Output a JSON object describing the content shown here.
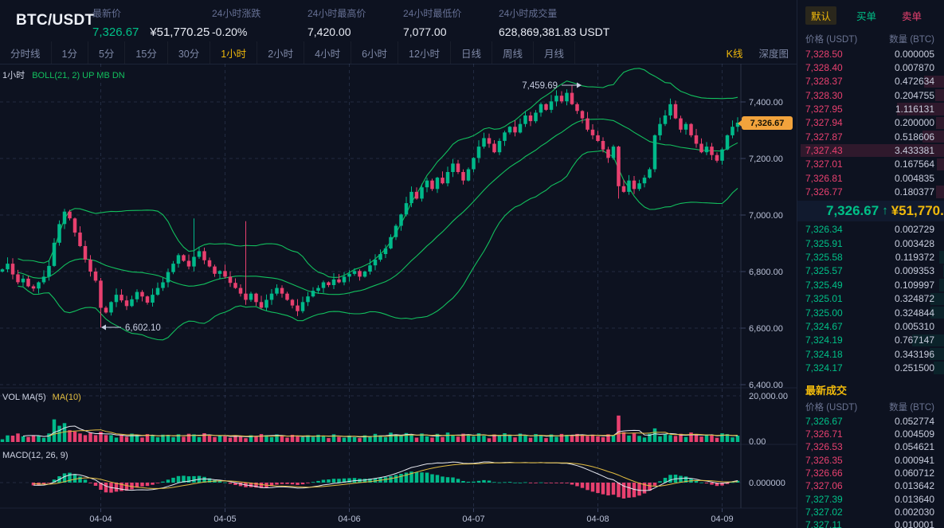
{
  "header": {
    "symbol": "BTC/USDT",
    "stats": [
      {
        "label": "最新价",
        "value": "7,326.67",
        "value2": "¥51,770.25"
      },
      {
        "label": "24小时涨跌",
        "value": "-0.20%"
      },
      {
        "label": "24小时最高价",
        "value": "7,420.00"
      },
      {
        "label": "24小时最低价",
        "value": "7,077.00"
      },
      {
        "label": "24小时成交量",
        "value": "628,869,381.83 USDT"
      }
    ]
  },
  "interval_tabs": [
    {
      "key": "time-line",
      "label": "分时线",
      "active": false
    },
    {
      "key": "1m",
      "label": "1分",
      "active": false
    },
    {
      "key": "5m",
      "label": "5分",
      "active": false
    },
    {
      "key": "15m",
      "label": "15分",
      "active": false
    },
    {
      "key": "30m",
      "label": "30分",
      "active": false
    },
    {
      "key": "1h",
      "label": "1小时",
      "active": true
    },
    {
      "key": "2h",
      "label": "2小时",
      "active": false
    },
    {
      "key": "4h",
      "label": "4小时",
      "active": false
    },
    {
      "key": "6h",
      "label": "6小时",
      "active": false
    },
    {
      "key": "12h",
      "label": "12小时",
      "active": false
    },
    {
      "key": "1d",
      "label": "日线",
      "active": false
    },
    {
      "key": "1w",
      "label": "周线",
      "active": false
    },
    {
      "key": "1mo",
      "label": "月线",
      "active": false
    }
  ],
  "view_tabs": [
    {
      "key": "kline",
      "label": "K线",
      "active": true
    },
    {
      "key": "depth",
      "label": "深度图",
      "active": false
    }
  ],
  "legends": {
    "pane": "1小时",
    "boll": "BOLL(21, 2) UP MB DN",
    "vol": "VOL MA(5)",
    "vol_ma10": "MA(10)",
    "macd": "MACD(12, 26, 9)"
  },
  "colors": {
    "up": "#00b98a",
    "down": "#e8406f",
    "boll": "#12c05e",
    "accent": "#f0b90b",
    "tag_bg": "#f2a33c",
    "ma5": "#e6e8f0",
    "ma10": "#e3bd40",
    "grid": "rgba(110,130,180,0.22)",
    "axis_text": "#b9c0d6"
  },
  "chart_data": {
    "type": "candlestick",
    "title": "BTC/USDT 1小时 K线",
    "interval": "1h",
    "indicators": {
      "boll": {
        "window": 21,
        "k": 2
      },
      "vol_ma": [
        5,
        10
      ],
      "macd": {
        "fast": 12,
        "slow": 26,
        "signal": 9
      }
    },
    "x_dates": [
      "04-04",
      "04-05",
      "04-06",
      "04-07",
      "04-08",
      "04-09"
    ],
    "date_tick_indices": [
      19,
      43,
      67,
      91,
      115,
      139
    ],
    "first_open": 6800,
    "closes": [
      6808,
      6828,
      6790,
      6762,
      6775,
      6748,
      6740,
      6762,
      6782,
      6820,
      6902,
      6968,
      7012,
      6988,
      6938,
      6890,
      6842,
      6800,
      6768,
      6672,
      6655,
      6692,
      6718,
      6698,
      6678,
      6702,
      6728,
      6712,
      6690,
      6718,
      6742,
      6762,
      6798,
      6828,
      6858,
      6838,
      6818,
      6852,
      6872,
      6840,
      6818,
      6792,
      6802,
      6782,
      6760,
      6742,
      6722,
      6700,
      6722,
      6692,
      6672,
      6700,
      6722,
      6742,
      6722,
      6700,
      6680,
      6660,
      6692,
      6712,
      6732,
      6742,
      6762,
      6752,
      6772,
      6762,
      6782,
      6792,
      6802,
      6782,
      6800,
      6822,
      6842,
      6862,
      6882,
      6922,
      6962,
      7002,
      7042,
      7082,
      7058,
      7098,
      7122,
      7092,
      7132,
      7112,
      7152,
      7182,
      7152,
      7122,
      7162,
      7202,
      7242,
      7272,
      7252,
      7222,
      7262,
      7292,
      7312,
      7292,
      7322,
      7352,
      7332,
      7362,
      7392,
      7372,
      7402,
      7422,
      7402,
      7432,
      7392,
      7368,
      7342,
      7302,
      7282,
      7262,
      7232,
      7202,
      7242,
      7102,
      7082,
      7122,
      7092,
      7112,
      7132,
      7162,
      7282,
      7322,
      7352,
      7392,
      7342,
      7302,
      7322,
      7282,
      7252,
      7222,
      7242,
      7212,
      7192,
      7232,
      7282,
      7312,
      7326.67
    ],
    "wick_overrides": {
      "19": {
        "low": 6602.1
      },
      "37": {
        "high": 6988
      },
      "47": {
        "high": 6978
      },
      "110": {
        "high": 7459.69
      },
      "119": {
        "low": 7058
      },
      "129": {
        "high": 7412
      }
    },
    "annotations": {
      "high": "7,459.69",
      "low": "6,602.10"
    },
    "y_axis": {
      "labels": [
        "7,400.00",
        "7,200.00",
        "7,000.00",
        "6,800.00",
        "6,600.00",
        "6,400.00"
      ],
      "prices": [
        7400,
        7200,
        7000,
        6800,
        6600,
        6400
      ]
    },
    "vol_axis": {
      "labels": [
        "20,000.00",
        "0.00"
      ],
      "max": 20000
    },
    "macd_axis": {
      "labels": [
        "0.000000"
      ]
    },
    "last_price_tag": "7,326.67"
  },
  "orderbook": {
    "tabs": [
      {
        "key": "default",
        "label": "默认"
      },
      {
        "key": "buy",
        "label": "买单"
      },
      {
        "key": "sell",
        "label": "卖单"
      }
    ],
    "columns": {
      "price": "价格 (USDT)",
      "amount": "数量 (BTC)"
    },
    "asks": [
      {
        "price": "7,328.50",
        "amount": "0.000005"
      },
      {
        "price": "7,328.40",
        "amount": "0.007870"
      },
      {
        "price": "7,328.37",
        "amount": "0.472634"
      },
      {
        "price": "7,328.30",
        "amount": "0.204755"
      },
      {
        "price": "7,327.95",
        "amount": "1.116131"
      },
      {
        "price": "7,327.94",
        "amount": "0.200000"
      },
      {
        "price": "7,327.87",
        "amount": "0.518606"
      },
      {
        "price": "7,327.43",
        "amount": "3.433381"
      },
      {
        "price": "7,327.01",
        "amount": "0.167564"
      },
      {
        "price": "7,326.81",
        "amount": "0.004835"
      },
      {
        "price": "7,326.77",
        "amount": "0.180377"
      }
    ],
    "mid": {
      "price": "7,326.67",
      "arrow": "↑",
      "cny": "¥51,770.25"
    },
    "bids": [
      {
        "price": "7,326.34",
        "amount": "0.002729"
      },
      {
        "price": "7,325.91",
        "amount": "0.003428"
      },
      {
        "price": "7,325.58",
        "amount": "0.119372"
      },
      {
        "price": "7,325.57",
        "amount": "0.009353"
      },
      {
        "price": "7,325.49",
        "amount": "0.109997"
      },
      {
        "price": "7,325.01",
        "amount": "0.324872"
      },
      {
        "price": "7,325.00",
        "amount": "0.324844"
      },
      {
        "price": "7,324.67",
        "amount": "0.005310"
      },
      {
        "price": "7,324.19",
        "amount": "0.767147"
      },
      {
        "price": "7,324.18",
        "amount": "0.343196"
      },
      {
        "price": "7,324.17",
        "amount": "0.251500"
      }
    ]
  },
  "trades": {
    "heading": "最新成交",
    "columns": {
      "price": "价格 (USDT)",
      "amount": "数量 (BTC)"
    },
    "rows": [
      {
        "price": "7,326.67",
        "amount": "0.052774",
        "side": "buy"
      },
      {
        "price": "7,326.71",
        "amount": "0.004509",
        "side": "sell"
      },
      {
        "price": "7,326.53",
        "amount": "0.054621",
        "side": "sell"
      },
      {
        "price": "7,326.35",
        "amount": "0.000941",
        "side": "sell"
      },
      {
        "price": "7,326.66",
        "amount": "0.060712",
        "side": "sell"
      },
      {
        "price": "7,327.06",
        "amount": "0.013642",
        "side": "sell"
      },
      {
        "price": "7,327.39",
        "amount": "0.013640",
        "side": "buy"
      },
      {
        "price": "7,327.02",
        "amount": "0.002030",
        "side": "buy"
      },
      {
        "price": "7,327.11",
        "amount": "0.010001",
        "side": "buy"
      }
    ]
  }
}
